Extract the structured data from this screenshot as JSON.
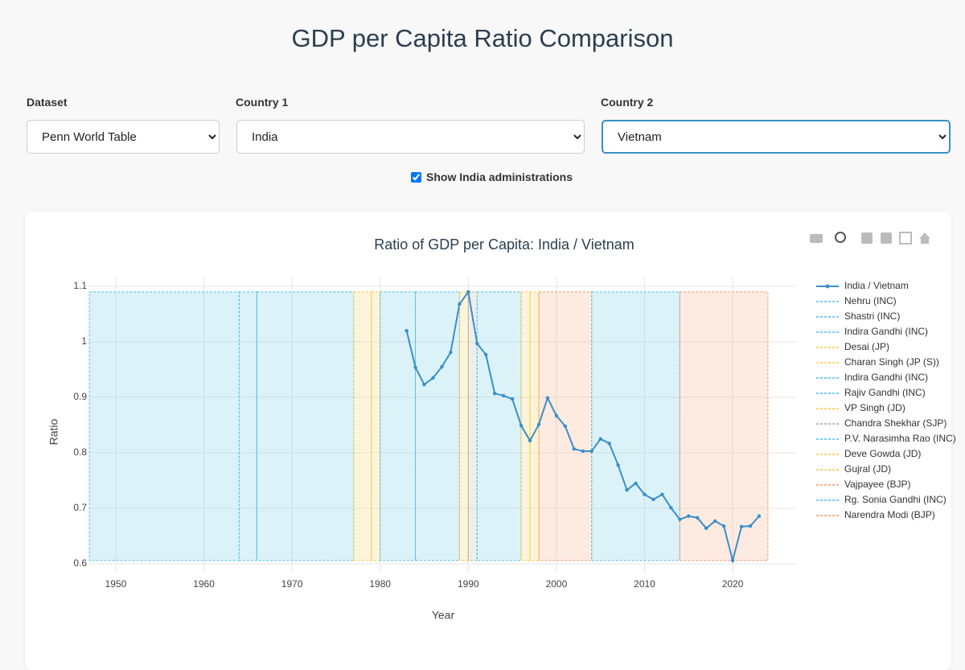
{
  "header": {
    "title": "GDP per Capita Ratio Comparison"
  },
  "controls": {
    "dataset": {
      "label": "Dataset",
      "value": "Penn World Table"
    },
    "country1": {
      "label": "Country 1",
      "value": "India"
    },
    "country2": {
      "label": "Country 2",
      "value": "Vietnam"
    },
    "administrations": {
      "label": "Show India administrations",
      "checked": true
    }
  },
  "chart_data": {
    "type": "line",
    "title": "Ratio of GDP per Capita: India / Vietnam",
    "x_label": "Year",
    "y_label": "Ratio",
    "x": [
      1983,
      1984,
      1985,
      1986,
      1987,
      1988,
      1989,
      1990,
      1991,
      1992,
      1993,
      1994,
      1995,
      1996,
      1997,
      1998,
      1999,
      2000,
      2001,
      2002,
      2003,
      2004,
      2005,
      2006,
      2007,
      2008,
      2009,
      2010,
      2011,
      2012,
      2013,
      2014,
      2015,
      2016,
      2017,
      2018,
      2019,
      2020,
      2021,
      2022,
      2023
    ],
    "series": [
      {
        "name": "India / Vietnam",
        "color": "#3a8fc7",
        "values": [
          1.02,
          0.954,
          0.923,
          0.935,
          0.955,
          0.981,
          1.068,
          1.09,
          0.997,
          0.977,
          0.907,
          0.903,
          0.897,
          0.849,
          0.822,
          0.851,
          0.899,
          0.867,
          0.848,
          0.807,
          0.803,
          0.803,
          0.825,
          0.817,
          0.778,
          0.733,
          0.745,
          0.725,
          0.716,
          0.725,
          0.701,
          0.68,
          0.686,
          0.683,
          0.664,
          0.677,
          0.668,
          0.606,
          0.667,
          0.668,
          0.686
        ]
      }
    ],
    "administrations": [
      {
        "name": "Nehru (INC)",
        "color": "#4fbfe3",
        "start": 1947,
        "end": 1964
      },
      {
        "name": "Shastri (INC)",
        "color": "#4fbfe3",
        "start": 1964,
        "end": 1966
      },
      {
        "name": "Indira Gandhi (INC)",
        "color": "#4fbfe3",
        "start": 1966,
        "end": 1977
      },
      {
        "name": "Desai (JP)",
        "color": "#f7c948",
        "start": 1977,
        "end": 1979
      },
      {
        "name": "Charan Singh (JP (S))",
        "color": "#f7c948",
        "start": 1979,
        "end": 1980
      },
      {
        "name": "Indira Gandhi (INC)",
        "color": "#4fbfe3",
        "start": 1980,
        "end": 1984
      },
      {
        "name": "Rajiv Gandhi (INC)",
        "color": "#4fbfe3",
        "start": 1984,
        "end": 1989
      },
      {
        "name": "VP Singh (JD)",
        "color": "#f7c948",
        "start": 1989,
        "end": 1990
      },
      {
        "name": "Chandra Shekhar (SJP)",
        "color": "#a8a8a8",
        "start": 1990,
        "end": 1991
      },
      {
        "name": "P.V. Narasimha Rao (INC)",
        "color": "#4fbfe3",
        "start": 1991,
        "end": 1996
      },
      {
        "name": "Deve Gowda (JD)",
        "color": "#f7c948",
        "start": 1996,
        "end": 1997
      },
      {
        "name": "Gujral (JD)",
        "color": "#f7c948",
        "start": 1997,
        "end": 1998
      },
      {
        "name": "Vajpayee (BJP)",
        "color": "#f39a6b",
        "start": 1998,
        "end": 2004
      },
      {
        "name": "Rg. Sonia Gandhi (INC)",
        "color": "#4fbfe3",
        "start": 2004,
        "end": 2014
      },
      {
        "name": "Narendra Modi (BJP)",
        "color": "#f39a6b",
        "start": 2014,
        "end": 2024
      }
    ],
    "xlim": [
      1946.9,
      2027.2
    ],
    "ylim": [
      0.584,
      1.116
    ],
    "xticks": [
      1950,
      1960,
      1970,
      1980,
      1990,
      2000,
      2010,
      2020
    ],
    "yticks": [
      0.6,
      0.7,
      0.8,
      0.9,
      1,
      1.1
    ],
    "grid": true
  }
}
